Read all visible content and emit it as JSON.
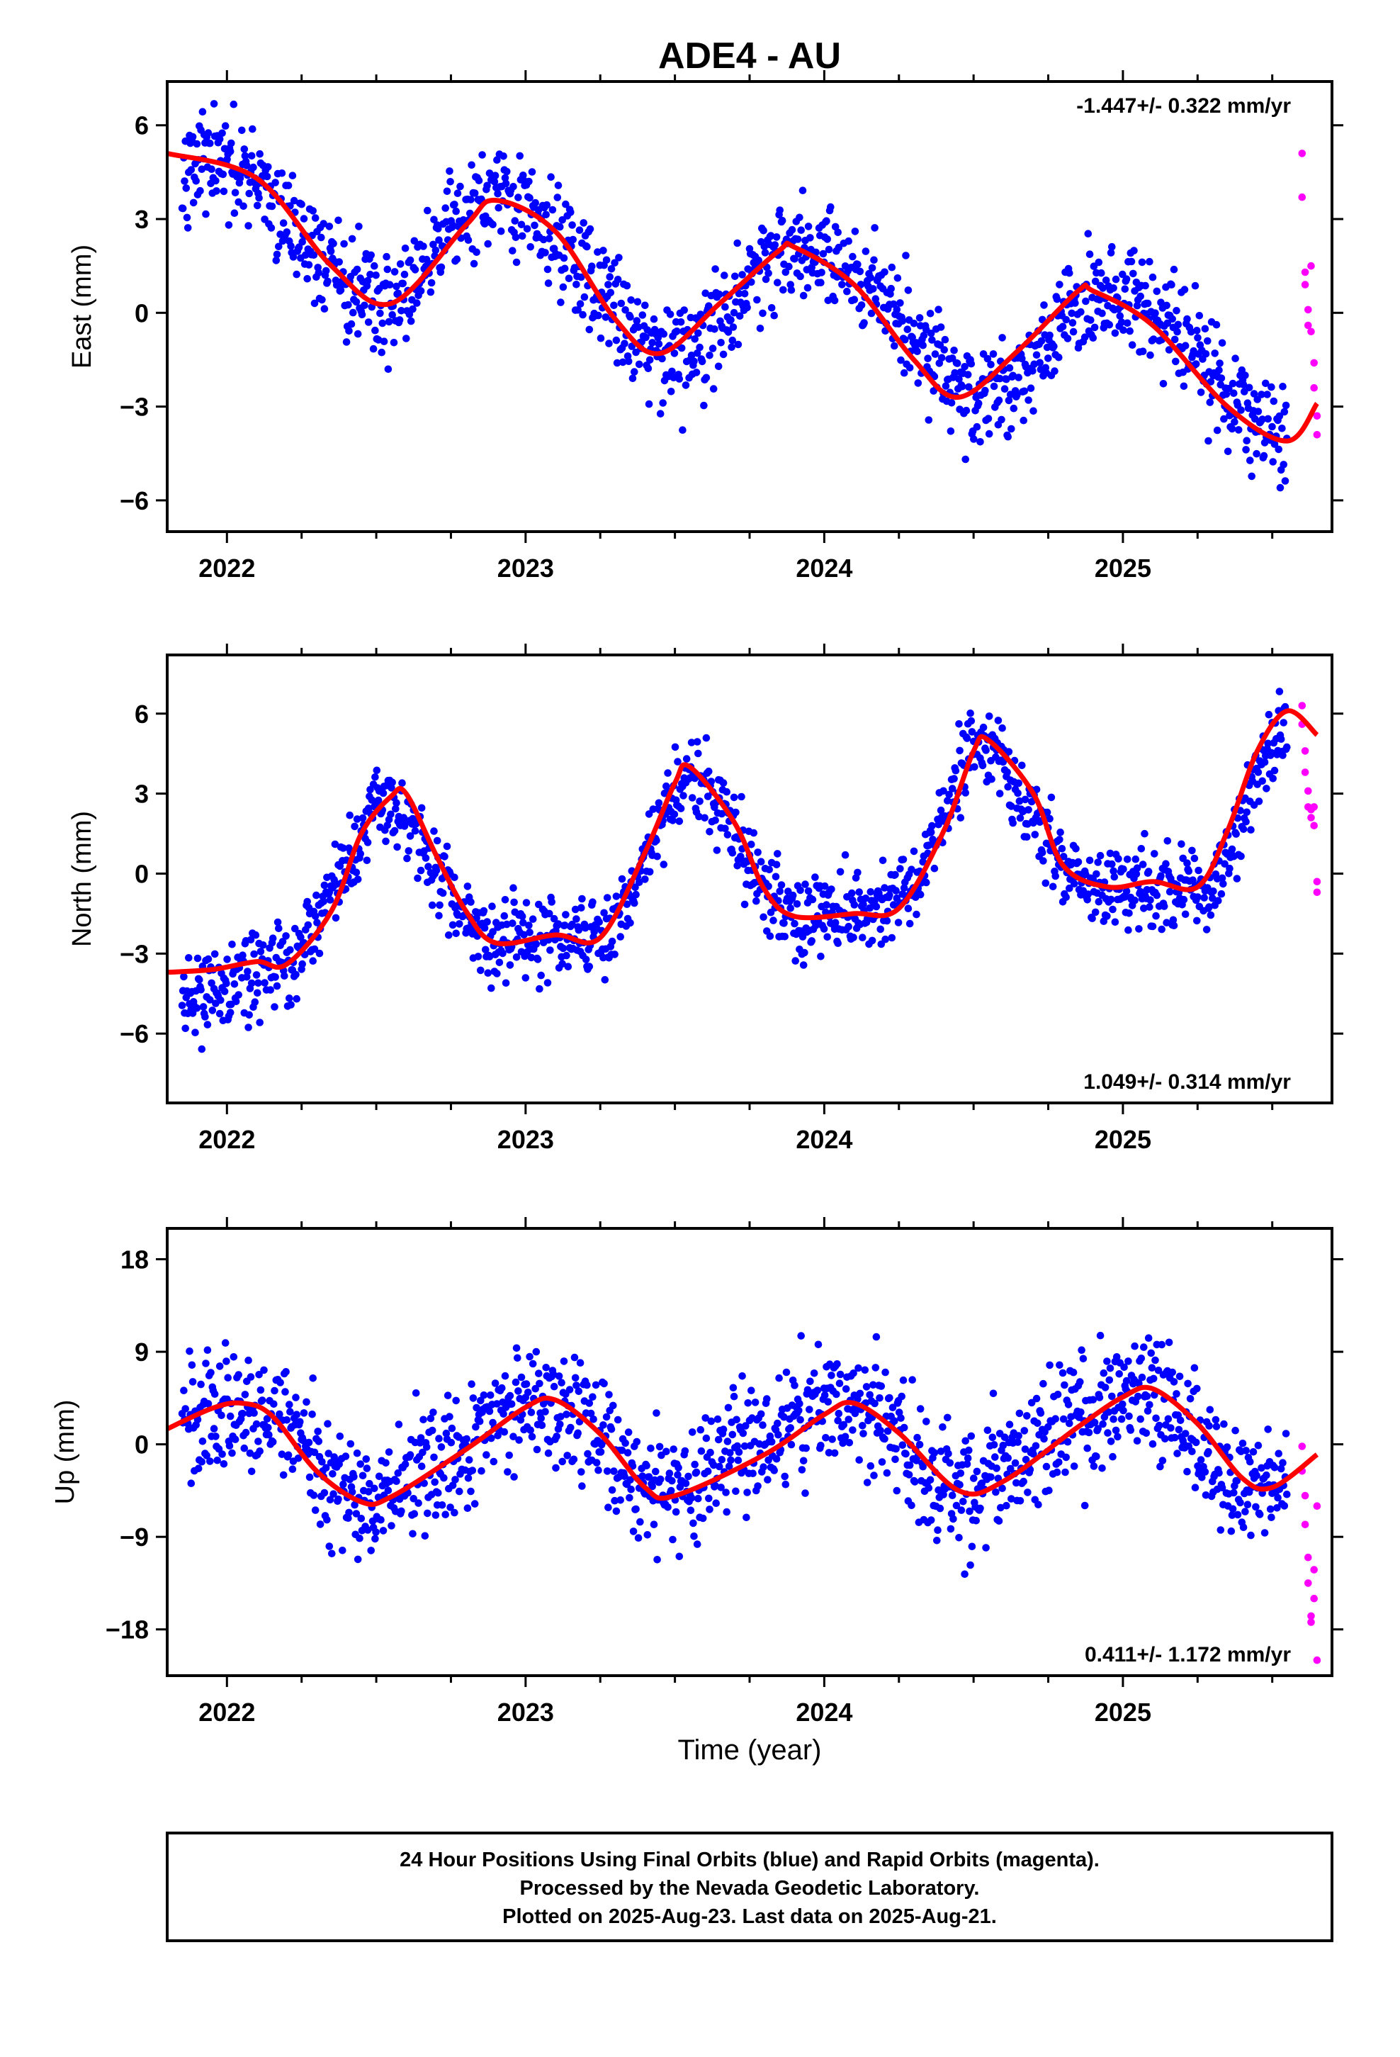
{
  "colors": {
    "final_orbits": "#0000ff",
    "rapid_orbits": "#ff00ff",
    "model_fit": "#ff0000",
    "frame": "#000000"
  },
  "chart_data": {
    "title": "ADE4 - AU",
    "xlabel": "Time (year)",
    "x_range": [
      2021.8,
      2025.7
    ],
    "x_ticks": [
      2022,
      2023,
      2024,
      2025
    ],
    "series_legend": [
      "Final Orbits (blue)",
      "Rapid Orbits (magenta)"
    ],
    "panels": [
      {
        "type": "scatter",
        "ylabel": "East (mm)",
        "ylim": [
          -7,
          7.4
        ],
        "y_ticks": [
          6,
          3,
          0,
          -3,
          -6
        ],
        "rate_text": "-1.447+/- 0.322 mm/yr",
        "rate_position": "top-right",
        "trend": -1.447,
        "model_fit": {
          "x": [
            2021.8,
            2022.1,
            2022.35,
            2022.55,
            2022.8,
            2022.9,
            2023.1,
            2023.3,
            2023.45,
            2023.65,
            2023.85,
            2023.9,
            2024.1,
            2024.3,
            2024.45,
            2024.65,
            2024.85,
            2024.9,
            2025.1,
            2025.35,
            2025.55,
            2025.65
          ],
          "y": [
            5.1,
            4.3,
            1.5,
            0.3,
            2.8,
            3.6,
            2.6,
            -0.2,
            -1.3,
            0.3,
            2.0,
            2.1,
            0.9,
            -1.5,
            -2.7,
            -1.2,
            0.7,
            0.7,
            -0.4,
            -3.0,
            -4.1,
            -2.9
          ]
        },
        "final_samples": {
          "x": [
            2021.85,
            2021.9,
            2022.0,
            2022.1,
            2022.2,
            2022.3,
            2022.4,
            2022.5,
            2022.6,
            2022.7,
            2022.8,
            2022.9,
            2023.0,
            2023.1,
            2023.2,
            2023.3,
            2023.4,
            2023.5,
            2023.6,
            2023.7,
            2023.8,
            2023.9,
            2024.0,
            2024.1,
            2024.2,
            2024.3,
            2024.4,
            2024.5,
            2024.6,
            2024.7,
            2024.8,
            2024.9,
            2025.0,
            2025.1,
            2025.2,
            2025.3,
            2025.4,
            2025.5,
            2025.55
          ],
          "y": [
            5.0,
            4.9,
            4.6,
            4.0,
            3.0,
            2.0,
            0.8,
            0.2,
            0.6,
            1.9,
            3.2,
            3.6,
            3.3,
            2.6,
            1.3,
            0.0,
            -0.9,
            -1.3,
            -0.8,
            0.3,
            1.5,
            2.1,
            2.0,
            1.5,
            0.5,
            -0.7,
            -1.9,
            -2.7,
            -2.5,
            -1.6,
            -0.3,
            0.6,
            0.7,
            0.2,
            -0.9,
            -2.0,
            -3.1,
            -3.9,
            -4.1
          ],
          "spread": 1.3
        },
        "rapid_samples": {
          "x": [
            2025.6,
            2025.6,
            2025.61,
            2025.61,
            2025.62,
            2025.62,
            2025.63,
            2025.63,
            2025.64,
            2025.64,
            2025.65,
            2025.65
          ],
          "y": [
            5.1,
            3.7,
            1.3,
            0.9,
            0.1,
            -0.4,
            1.5,
            -0.6,
            -1.6,
            -2.4,
            -3.3,
            -3.9
          ]
        }
      },
      {
        "type": "scatter",
        "ylabel": "North (mm)",
        "ylim": [
          -8.6,
          8.2
        ],
        "y_ticks": [
          6,
          3,
          0,
          -3,
          -6
        ],
        "rate_text": "1.049+/- 0.314 mm/yr",
        "rate_position": "bottom-right",
        "trend": 1.049,
        "model_fit": {
          "x": [
            2021.8,
            2021.95,
            2022.1,
            2022.2,
            2022.35,
            2022.45,
            2022.55,
            2022.6,
            2022.7,
            2022.8,
            2022.9,
            2023.1,
            2023.25,
            2023.4,
            2023.5,
            2023.55,
            2023.7,
            2023.8,
            2023.9,
            2024.1,
            2024.25,
            2024.4,
            2024.5,
            2024.55,
            2024.7,
            2024.8,
            2024.95,
            2025.1,
            2025.25,
            2025.35,
            2025.45,
            2025.55,
            2025.65
          ],
          "y": [
            -3.7,
            -3.6,
            -3.3,
            -3.4,
            -1.4,
            1.5,
            2.9,
            3.0,
            0.7,
            -1.4,
            -2.6,
            -2.3,
            -2.4,
            0.8,
            3.4,
            4.0,
            1.9,
            -0.6,
            -1.6,
            -1.5,
            -1.3,
            1.6,
            4.6,
            5.0,
            3.0,
            0.3,
            -0.5,
            -0.3,
            -0.5,
            1.6,
            4.6,
            6.1,
            5.2
          ]
        },
        "final_samples": {
          "x": [
            2021.85,
            2021.9,
            2022.0,
            2022.1,
            2022.2,
            2022.3,
            2022.4,
            2022.5,
            2022.6,
            2022.7,
            2022.8,
            2022.9,
            2023.0,
            2023.1,
            2023.2,
            2023.3,
            2023.4,
            2023.5,
            2023.6,
            2023.7,
            2023.8,
            2023.9,
            2024.0,
            2024.1,
            2024.2,
            2024.3,
            2024.4,
            2024.5,
            2024.6,
            2024.7,
            2024.8,
            2024.9,
            2025.0,
            2025.1,
            2025.2,
            2025.3,
            2025.4,
            2025.5,
            2025.55
          ],
          "y": [
            -5.0,
            -4.6,
            -4.1,
            -3.6,
            -3.5,
            -2.0,
            0.3,
            2.6,
            2.3,
            0.2,
            -1.7,
            -2.6,
            -2.4,
            -2.3,
            -2.4,
            -1.9,
            0.6,
            3.2,
            3.4,
            1.6,
            -0.5,
            -1.5,
            -1.5,
            -1.4,
            -1.3,
            -0.4,
            2.2,
            4.8,
            4.2,
            2.0,
            0.2,
            -0.4,
            -0.4,
            -0.4,
            -0.6,
            -1.0,
            2.4,
            5.0,
            5.6
          ],
          "spread": 1.2
        },
        "rapid_samples": {
          "x": [
            2025.6,
            2025.6,
            2025.61,
            2025.61,
            2025.62,
            2025.62,
            2025.63,
            2025.63,
            2025.64,
            2025.64,
            2025.65,
            2025.65
          ],
          "y": [
            6.3,
            5.6,
            4.6,
            3.8,
            3.1,
            2.5,
            2.1,
            2.4,
            2.5,
            1.8,
            -0.3,
            -0.7
          ]
        }
      },
      {
        "type": "scatter",
        "ylabel": "Up (mm)",
        "ylim": [
          -22.5,
          21
        ],
        "y_ticks": [
          18,
          9,
          0,
          -9,
          -18
        ],
        "rate_text": "0.411+/- 1.172 mm/yr",
        "rate_position": "bottom-right",
        "trend": 0.411,
        "model_fit": {
          "x": [
            2021.8,
            2021.95,
            2022.05,
            2022.15,
            2022.3,
            2022.45,
            2022.55,
            2022.8,
            2023.0,
            2023.1,
            2023.25,
            2023.4,
            2023.5,
            2023.8,
            2024.0,
            2024.1,
            2024.25,
            2024.45,
            2024.6,
            2024.85,
            2025.0,
            2025.1,
            2025.25,
            2025.4,
            2025.5,
            2025.65
          ],
          "y": [
            1.5,
            3.5,
            4.0,
            2.8,
            -2.6,
            -5.6,
            -5.1,
            -0.5,
            3.6,
            4.3,
            1.0,
            -4.2,
            -5.0,
            -1.0,
            2.9,
            4.0,
            1.1,
            -4.5,
            -3.6,
            1.7,
            4.6,
            5.4,
            2.0,
            -3.3,
            -4.2,
            -1.0
          ]
        },
        "final_samples": {
          "x": [
            2021.85,
            2021.9,
            2022.0,
            2022.1,
            2022.2,
            2022.3,
            2022.4,
            2022.5,
            2022.6,
            2022.7,
            2022.8,
            2022.9,
            2023.0,
            2023.1,
            2023.2,
            2023.3,
            2023.4,
            2023.5,
            2023.6,
            2023.7,
            2023.8,
            2023.9,
            2024.0,
            2024.1,
            2024.2,
            2024.3,
            2024.4,
            2024.5,
            2024.6,
            2024.7,
            2024.8,
            2024.9,
            2025.0,
            2025.1,
            2025.2,
            2025.3,
            2025.4,
            2025.5,
            2025.55
          ],
          "y": [
            1.8,
            2.8,
            3.8,
            3.7,
            1.9,
            -1.6,
            -4.7,
            -5.4,
            -3.6,
            -1.5,
            0.4,
            2.2,
            3.8,
            4.0,
            2.5,
            -1.6,
            -4.8,
            -4.8,
            -2.6,
            -0.5,
            1.0,
            2.3,
            3.5,
            4.3,
            2.8,
            -1.6,
            -4.4,
            -4.2,
            -2.6,
            -0.6,
            1.3,
            3.0,
            4.6,
            5.2,
            3.0,
            -1.5,
            -3.9,
            -4.0,
            -3.2
          ],
          "spread": 4.5
        },
        "rapid_samples": {
          "x": [
            2025.6,
            2025.6,
            2025.61,
            2025.61,
            2025.62,
            2025.62,
            2025.63,
            2025.63,
            2025.64,
            2025.64,
            2025.65,
            2025.65
          ],
          "y": [
            -0.2,
            -2.6,
            -5.0,
            -7.8,
            -11.0,
            -13.5,
            -16.7,
            -17.3,
            -12.2,
            -15.0,
            -21.0,
            -6.0
          ]
        }
      }
    ],
    "footnote": [
      "24 Hour Positions Using Final Orbits (blue) and Rapid Orbits (magenta).",
      "Processed by the Nevada Geodetic Laboratory.",
      "Plotted on 2025-Aug-23. Last data on 2025-Aug-21."
    ]
  }
}
